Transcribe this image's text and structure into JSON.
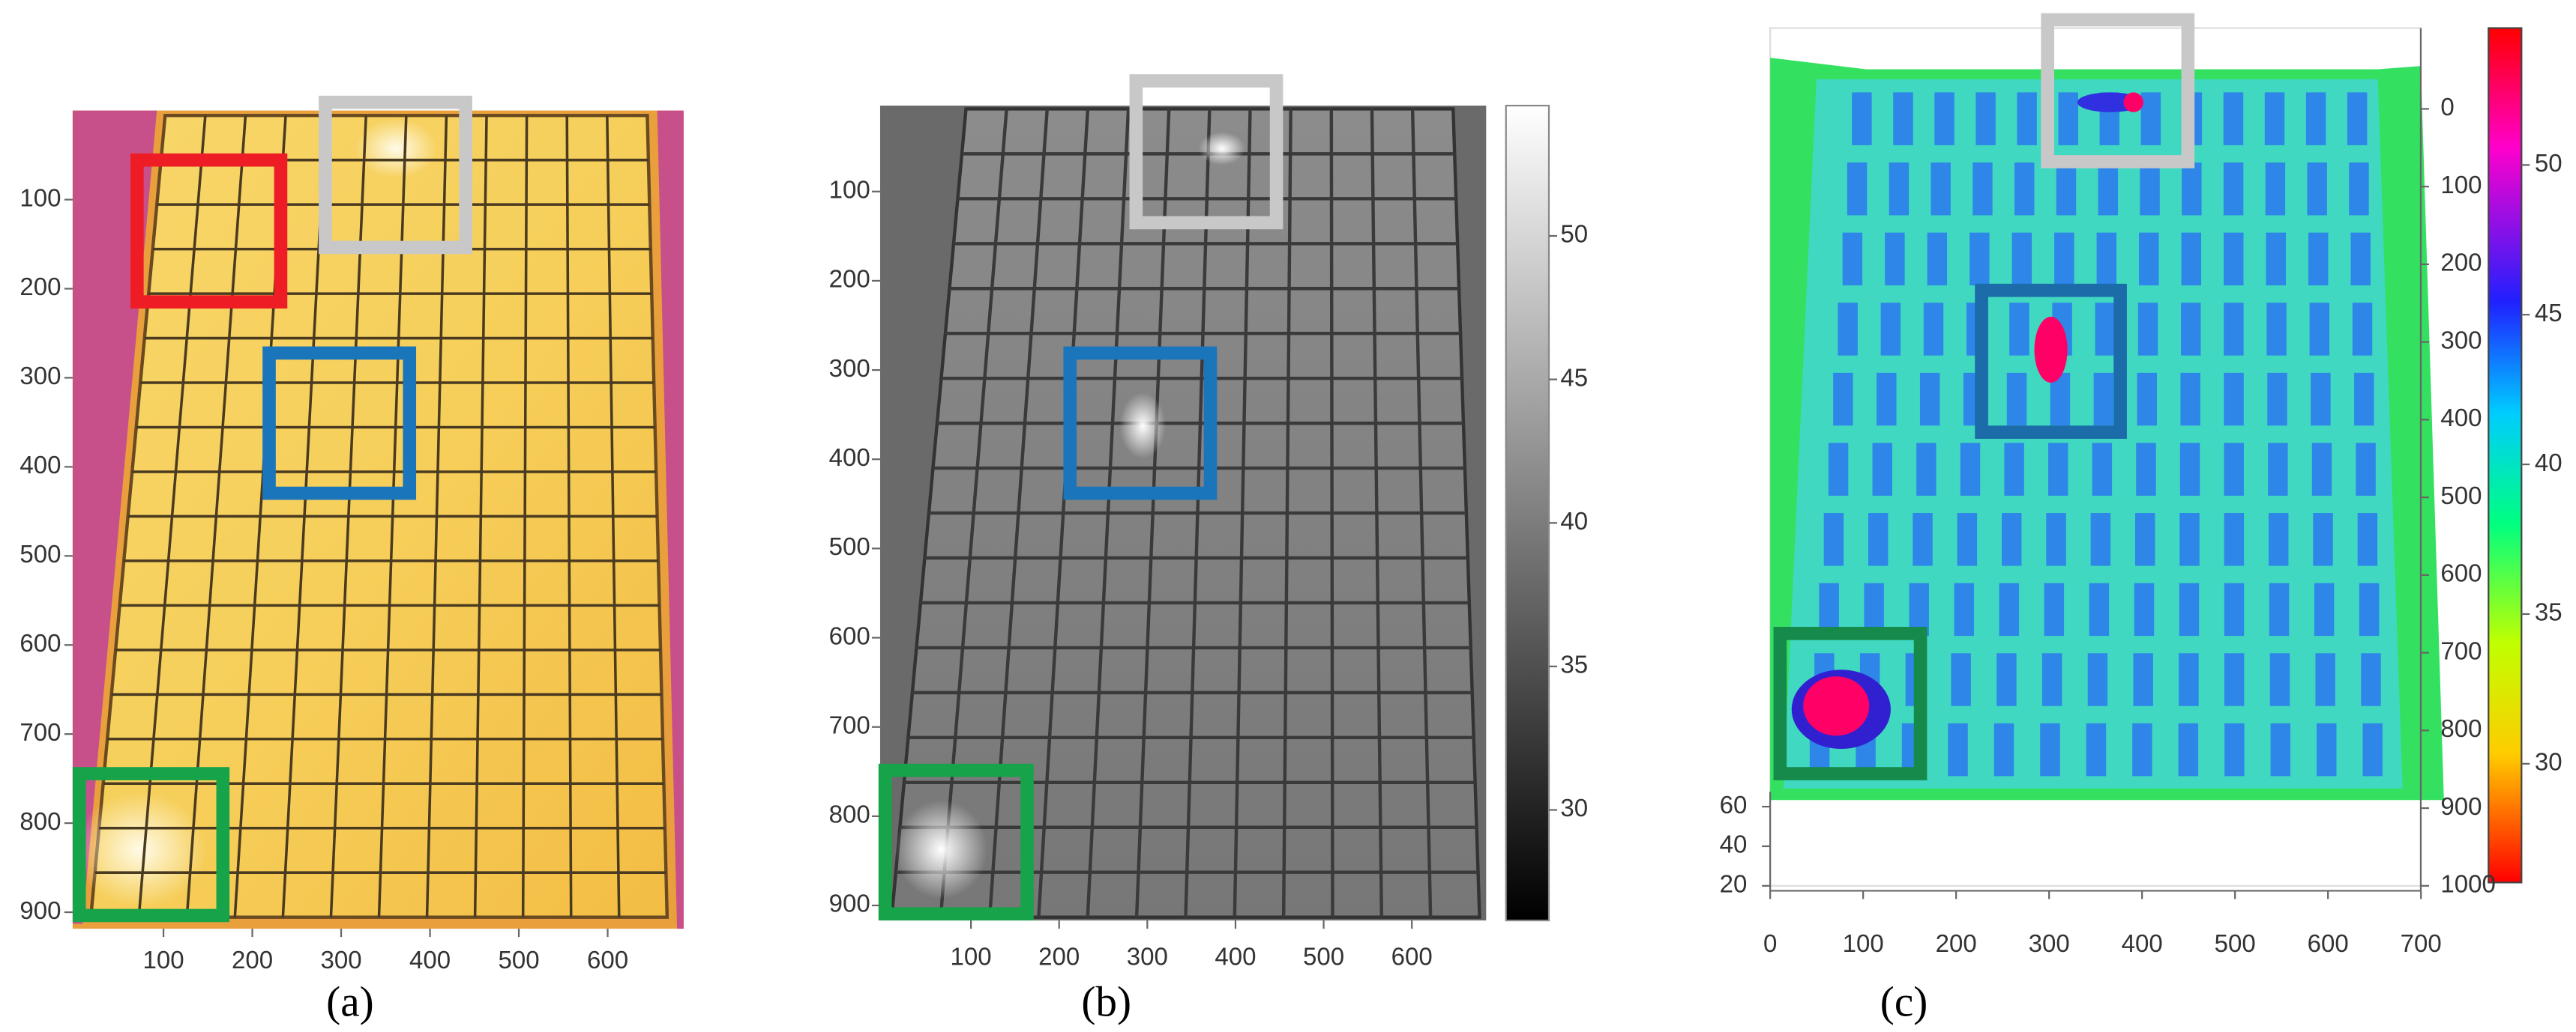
{
  "panels": [
    {
      "label": "(a)",
      "xticks": [
        100,
        200,
        300,
        400,
        500,
        600
      ],
      "yticks": [
        100,
        200,
        300,
        400,
        500,
        600,
        700,
        800,
        900
      ]
    },
    {
      "label": "(b)",
      "xticks": [
        100,
        200,
        300,
        400,
        500,
        600
      ],
      "yticks": [
        100,
        200,
        300,
        400,
        500,
        600,
        700,
        800,
        900
      ],
      "colorbar_ticks": [
        30,
        35,
        40,
        45,
        50
      ]
    },
    {
      "label": "(c)",
      "xticks": [
        0,
        100,
        200,
        300,
        400,
        500,
        600,
        700
      ],
      "yticks": [
        0,
        100,
        200,
        300,
        400,
        500,
        600,
        700,
        800,
        900,
        1000
      ],
      "zticks": [
        20,
        40,
        60
      ],
      "colorbar_ticks": [
        30,
        35,
        40,
        45,
        50
      ]
    }
  ]
}
